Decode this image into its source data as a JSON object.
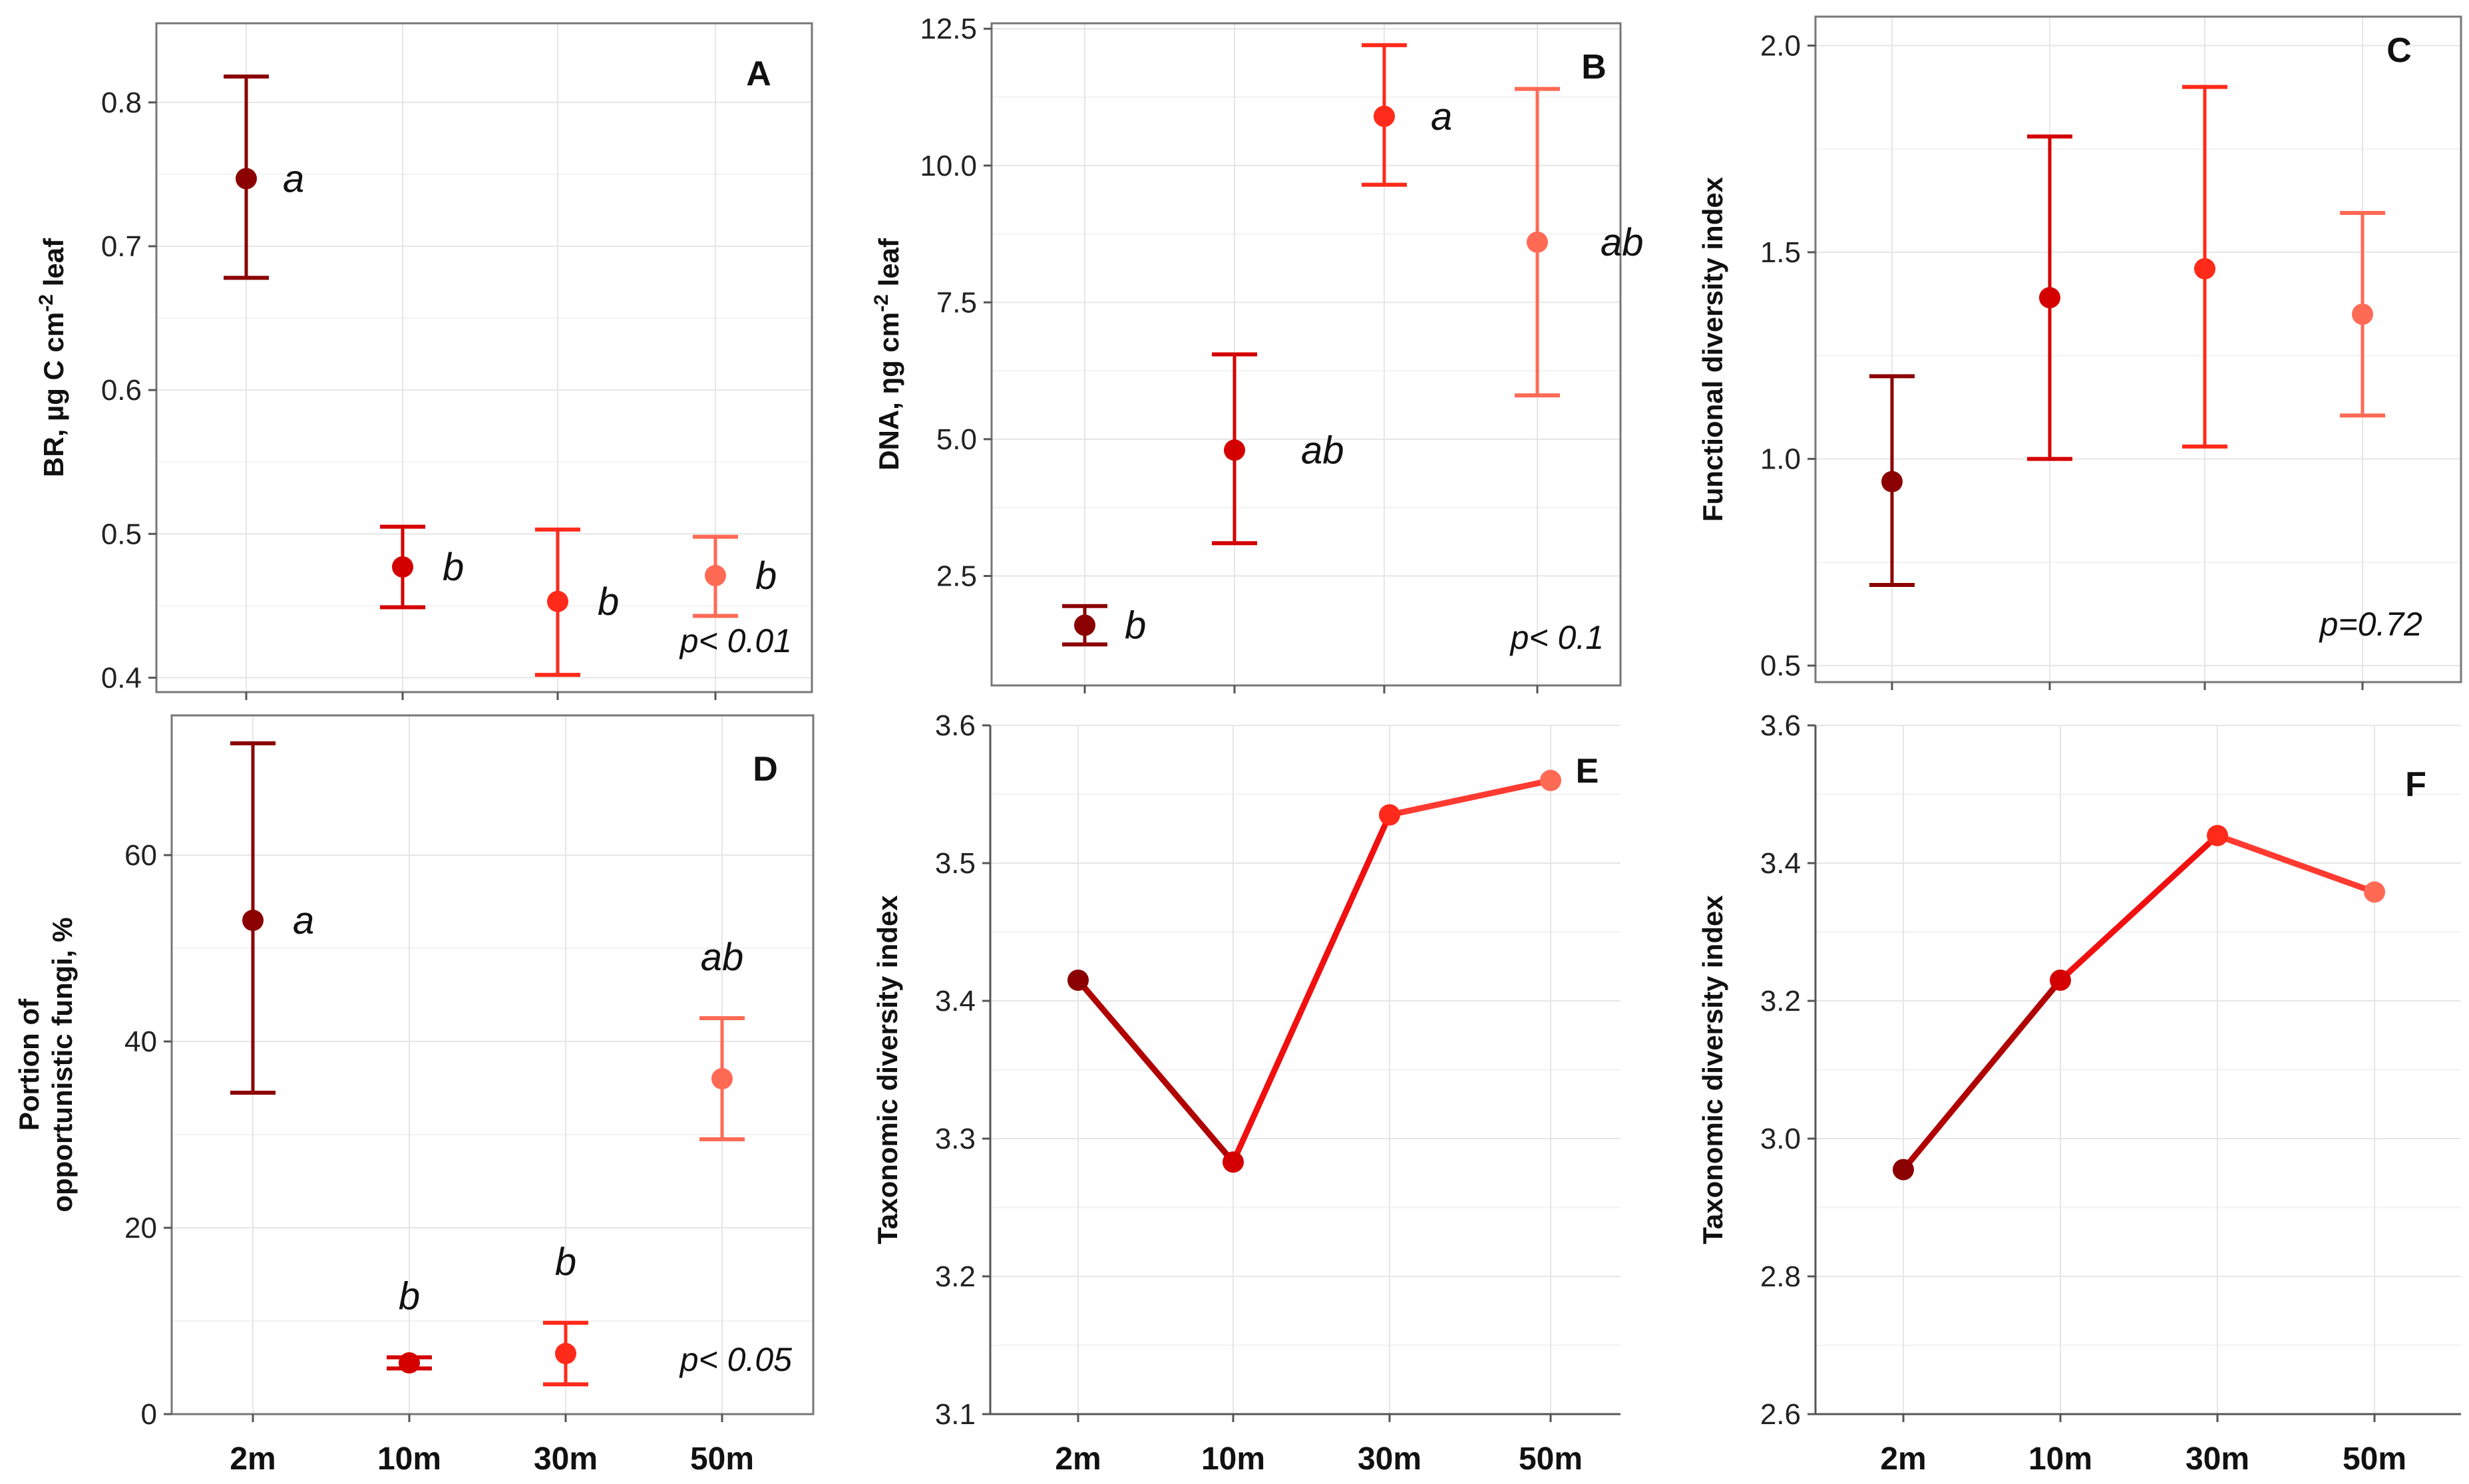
{
  "x_categories": [
    "2m",
    "10m",
    "30m",
    "50m"
  ],
  "colors": [
    "#8B0000",
    "#D40000",
    "#FF2A1A",
    "#FF6A55"
  ],
  "chart_data": [
    {
      "id": "A",
      "panel_label": "A",
      "type": "errorbar",
      "ylabel": "BR, µg C cm",
      "ylabel_sup": "-2",
      "ylabel_tail": " leaf",
      "ylim": [
        0.39,
        0.855
      ],
      "yticks": [
        0.4,
        0.5,
        0.6,
        0.7,
        0.8
      ],
      "yticklabels": [
        "0.4",
        "0.5",
        "0.6",
        "0.7",
        "0.8"
      ],
      "show_xticklabels": false,
      "values": [
        0.747,
        0.477,
        0.453,
        0.471
      ],
      "lower": [
        0.678,
        0.449,
        0.402,
        0.443
      ],
      "upper": [
        0.818,
        0.505,
        0.503,
        0.498
      ],
      "letters": [
        "a",
        "b",
        "b",
        "b"
      ],
      "pvalue": "p< 0.01"
    },
    {
      "id": "B",
      "panel_label": "B",
      "type": "errorbar",
      "ylabel": "DNA, ŋg cm",
      "ylabel_sup": "-2",
      "ylabel_tail": " leaf",
      "ylim": [
        0.5,
        12.6
      ],
      "yticks": [
        2.5,
        5.0,
        7.5,
        10.0,
        12.5
      ],
      "yticklabels": [
        "2.5",
        "5.0",
        "7.5",
        "10.0",
        "12.5"
      ],
      "show_xticklabels": false,
      "values": [
        1.6,
        4.8,
        10.9,
        8.6
      ],
      "lower": [
        1.25,
        3.1,
        9.65,
        5.8
      ],
      "upper": [
        1.95,
        6.55,
        12.2,
        11.4
      ],
      "letters": [
        "b",
        "ab",
        "a",
        "ab"
      ],
      "pvalue": "p< 0.1"
    },
    {
      "id": "C",
      "panel_label": "C",
      "type": "errorbar",
      "ylabel": "Functional  diversity index",
      "ylim": [
        0.46,
        2.07
      ],
      "yticks": [
        0.5,
        1.0,
        1.5,
        2.0
      ],
      "yticklabels": [
        "0.5",
        "1.0",
        "1.5",
        "2.0"
      ],
      "show_xticklabels": false,
      "values": [
        0.945,
        1.39,
        1.46,
        1.35
      ],
      "lower": [
        0.695,
        1.0,
        1.03,
        1.105
      ],
      "upper": [
        1.2,
        1.78,
        1.9,
        1.595
      ],
      "letters": [
        "",
        "",
        "",
        ""
      ],
      "pvalue": "p=0.72"
    },
    {
      "id": "D",
      "panel_label": "D",
      "type": "errorbar",
      "ylabel": "Portion of",
      "ylabel2": "opportunistic  fungi, %",
      "ylim": [
        0,
        75
      ],
      "yticks": [
        0,
        20,
        40,
        60
      ],
      "yticklabels": [
        "0",
        "20",
        "40",
        "60"
      ],
      "show_xticklabels": true,
      "values": [
        53.0,
        5.5,
        6.5,
        36.0
      ],
      "lower": [
        34.5,
        4.9,
        3.2,
        29.5
      ],
      "upper": [
        72.0,
        6.1,
        9.8,
        42.5
      ],
      "letters": [
        "a",
        "b",
        "b",
        "ab"
      ],
      "pvalue": "p< 0.05"
    },
    {
      "id": "E",
      "panel_label": "E",
      "type": "line",
      "ylabel": "Taxonomic diversity  index",
      "ylim": [
        3.1,
        3.6
      ],
      "yticks": [
        3.1,
        3.2,
        3.3,
        3.4,
        3.5,
        3.6
      ],
      "yticklabels": [
        "3.1",
        "3.2",
        "3.3",
        "3.4",
        "3.5",
        "3.6"
      ],
      "show_xticklabels": true,
      "values": [
        3.415,
        3.283,
        3.535,
        3.56
      ]
    },
    {
      "id": "F",
      "panel_label": "F",
      "type": "line",
      "ylabel": "Taxonomic diversity index",
      "ylim": [
        2.6,
        3.6
      ],
      "yticks": [
        2.6,
        2.8,
        3.0,
        3.2,
        3.4,
        3.6
      ],
      "yticklabels": [
        "2.6",
        "2.8",
        "3.0",
        "3.2",
        "3.4",
        "3.6"
      ],
      "show_xticklabels": true,
      "values": [
        2.955,
        3.23,
        3.44,
        3.358
      ]
    }
  ]
}
